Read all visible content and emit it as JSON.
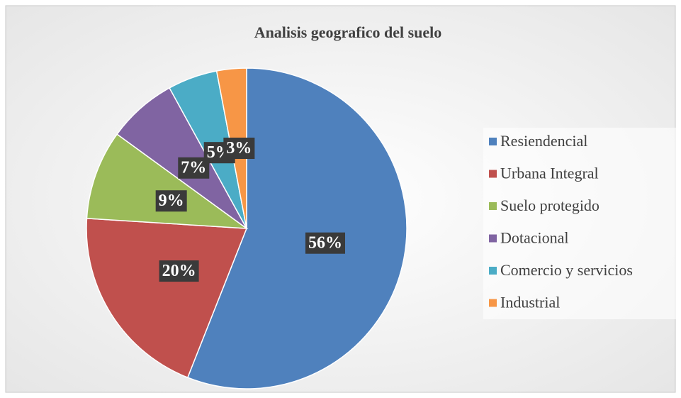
{
  "chart_data": {
    "type": "pie",
    "title": "Analisis geografico del suelo",
    "categories": [
      "Resiendencial",
      "Urbana Integral",
      "Suelo protegido",
      "Dotacional",
      "Comercio y servicios",
      "Industrial"
    ],
    "values": [
      56,
      20,
      9,
      7,
      5,
      3
    ],
    "value_labels": [
      "56%",
      "20%",
      "9%",
      "7%",
      "5%",
      "3%"
    ],
    "colors": [
      "#4f81bd",
      "#c0504d",
      "#9bbb59",
      "#8064a2",
      "#4bacc6",
      "#f79646"
    ],
    "legend": "right"
  }
}
